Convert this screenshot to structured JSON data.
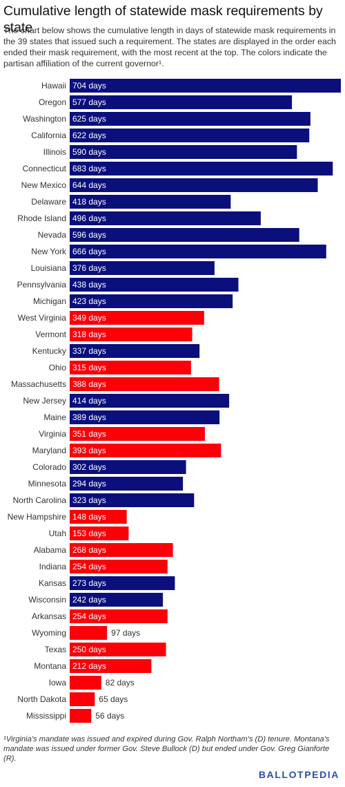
{
  "title": "Cumulative length of statewide mask requirements by state",
  "subtitle": "The chart below shows the cumulative length in days of statewide mask requirements in the 39 states that issued such a requirement. The states are displayed in the order each ended their mask requirement, with the most recent at the top. The colors indicate the partisan affiliation of the current governor¹.",
  "footnote": "¹Virginia's mandate was issued and expired during Gov. Ralph Northam's (D) tenure. Montana's mandate was issued under former Gov. Steve Bullock (D) but ended under Gov. Greg Gianforte (R).",
  "logo": "BALLOTPEDIA",
  "colors": {
    "Democratic": "#0a0f7c",
    "Republican": "#fb0007"
  },
  "chart_data": {
    "type": "bar",
    "orientation": "horizontal",
    "value_suffix": " days",
    "xlim": [
      0,
      704
    ],
    "grid": false,
    "categories": [
      "Hawaii",
      "Oregon",
      "Washington",
      "California",
      "Illinois",
      "Connecticut",
      "New Mexico",
      "Delaware",
      "Rhode Island",
      "Nevada",
      "New York",
      "Louisiana",
      "Pennsylvania",
      "Michigan",
      "West Virginia",
      "Vermont",
      "Kentucky",
      "Ohio",
      "Massachusetts",
      "New Jersey",
      "Maine",
      "Virginia",
      "Maryland",
      "Colorado",
      "Minnesota",
      "North Carolina",
      "New Hampshire",
      "Utah",
      "Alabama",
      "Indiana",
      "Kansas",
      "Wisconsin",
      "Arkansas",
      "Wyoming",
      "Texas",
      "Montana",
      "Iowa",
      "North Dakota",
      "Mississippi"
    ],
    "values": [
      704,
      577,
      625,
      622,
      590,
      683,
      644,
      418,
      496,
      596,
      666,
      376,
      438,
      423,
      349,
      318,
      337,
      315,
      388,
      414,
      389,
      351,
      393,
      302,
      294,
      323,
      148,
      153,
      268,
      254,
      273,
      242,
      254,
      97,
      250,
      212,
      82,
      65,
      56
    ],
    "party": [
      "D",
      "D",
      "D",
      "D",
      "D",
      "D",
      "D",
      "D",
      "D",
      "D",
      "D",
      "D",
      "D",
      "D",
      "R",
      "R",
      "D",
      "R",
      "R",
      "D",
      "D",
      "R",
      "R",
      "D",
      "D",
      "D",
      "R",
      "R",
      "R",
      "R",
      "D",
      "D",
      "R",
      "R",
      "R",
      "R",
      "R",
      "R",
      "R"
    ]
  }
}
